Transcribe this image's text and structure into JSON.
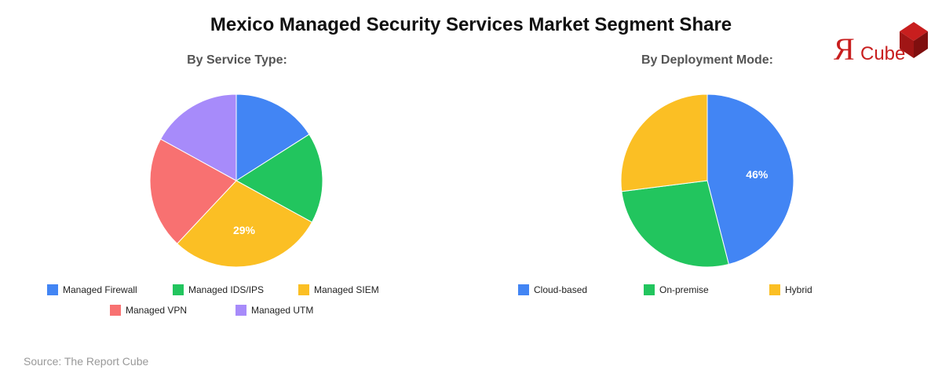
{
  "title": "Mexico Managed Security Services Market Segment Share",
  "source": "Source: The Report Cube",
  "logo": {
    "letter": "Я",
    "word": "Cube"
  },
  "chart_data": [
    {
      "type": "pie",
      "title": "By Service Type:",
      "labels": [
        "Managed Firewall",
        "Managed IDS/IPS",
        "Managed SIEM",
        "Managed VPN",
        "Managed UTM"
      ],
      "values": [
        16,
        17,
        29,
        21,
        17
      ],
      "colors": [
        "#4285f4",
        "#22c55e",
        "#fbbf24",
        "#f87171",
        "#a78bfa"
      ],
      "shown_labels": [
        "",
        "",
        "29%",
        "",
        ""
      ],
      "legend_position": "bottom"
    },
    {
      "type": "pie",
      "title": "By Deployment Mode:",
      "labels": [
        "Cloud-based",
        "On-premise",
        "Hybrid"
      ],
      "values": [
        46,
        27,
        27
      ],
      "colors": [
        "#4285f4",
        "#22c55e",
        "#fbbf24"
      ],
      "shown_labels": [
        "46%",
        "",
        ""
      ],
      "legend_position": "bottom"
    }
  ]
}
